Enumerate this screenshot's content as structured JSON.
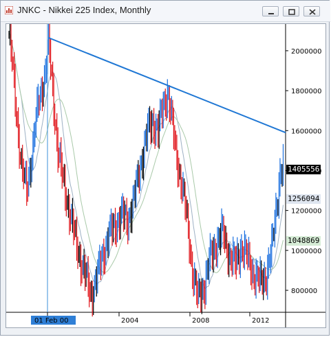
{
  "window": {
    "title": "JNKC - Nikkei 225 Index, Monthly",
    "buttons": {
      "minimize": "minimize",
      "maximize": "maximize",
      "close": "close"
    }
  },
  "chart_data": {
    "type": "ohlc",
    "title": "JNKC - Nikkei 225 Index, Monthly",
    "y_ticks": [
      800000,
      1000000,
      1200000,
      1400000,
      1600000,
      1800000,
      2000000
    ],
    "y_tick_labels": [
      "800000",
      "1000000",
      "1200000",
      "1400000",
      "1600000",
      "1800000",
      "2000000"
    ],
    "ylim": [
      690000,
      2120000
    ],
    "x_ticks": [
      {
        "label": "01 Feb 00",
        "highlighted": true
      },
      {
        "label": "2004",
        "highlighted": false
      },
      {
        "label": "2008",
        "highlighted": false
      },
      {
        "label": "2012",
        "highlighted": false
      }
    ],
    "price_markers": [
      {
        "label": "1405556",
        "value": 1405556,
        "bg": "#000000",
        "fg": "#ffffff"
      },
      {
        "label": "1256094",
        "value": 1256094,
        "bg": "#dfe6f0",
        "fg": "#000000"
      },
      {
        "label": "1048869",
        "value": 1048869,
        "bg": "#d6ecd6",
        "fg": "#000000"
      }
    ],
    "trendline": {
      "from_value": 2065000,
      "to_value": 1590000,
      "color": "#1f77d4"
    },
    "crosshair": {
      "color": "#3b8fd8"
    },
    "colors": {
      "up": "#1a6fdf",
      "down": "#e0141a",
      "neutral": "#000000",
      "ma_fast": "#9db0c4",
      "ma_slow": "#a9c9a9"
    },
    "series_key_points": [
      [
        0,
        2080000
      ],
      [
        3,
        1950000
      ],
      [
        7,
        1700000
      ],
      [
        12,
        1420000
      ],
      [
        17,
        1300000
      ],
      [
        22,
        1480000
      ],
      [
        27,
        1700000
      ],
      [
        31,
        1800000
      ],
      [
        35,
        1900000
      ],
      [
        38,
        2050000
      ],
      [
        42,
        1800000
      ],
      [
        47,
        1500000
      ],
      [
        52,
        1350000
      ],
      [
        58,
        1200000
      ],
      [
        64,
        1050000
      ],
      [
        69,
        950000
      ],
      [
        74,
        860000
      ],
      [
        79,
        780000
      ],
      [
        84,
        860000
      ],
      [
        90,
        980000
      ],
      [
        96,
        1080000
      ],
      [
        102,
        1130000
      ],
      [
        108,
        1180000
      ],
      [
        114,
        1150000
      ],
      [
        120,
        1260000
      ],
      [
        127,
        1450000
      ],
      [
        133,
        1600000
      ],
      [
        138,
        1650000
      ],
      [
        143,
        1600000
      ],
      [
        148,
        1720000
      ],
      [
        152,
        1800000
      ],
      [
        155,
        1700000
      ],
      [
        160,
        1500000
      ],
      [
        166,
        1320000
      ],
      [
        171,
        1150000
      ],
      [
        176,
        900000
      ],
      [
        181,
        760000
      ],
      [
        187,
        820000
      ],
      [
        193,
        960000
      ],
      [
        199,
        1040000
      ],
      [
        205,
        1090000
      ],
      [
        211,
        980000
      ],
      [
        217,
        930000
      ],
      [
        223,
        1020000
      ],
      [
        229,
        960000
      ],
      [
        235,
        880000
      ],
      [
        241,
        840000
      ],
      [
        247,
        880000
      ],
      [
        252,
        1000000
      ],
      [
        256,
        1200000
      ],
      [
        260,
        1380000
      ],
      [
        263,
        1405556
      ]
    ]
  }
}
